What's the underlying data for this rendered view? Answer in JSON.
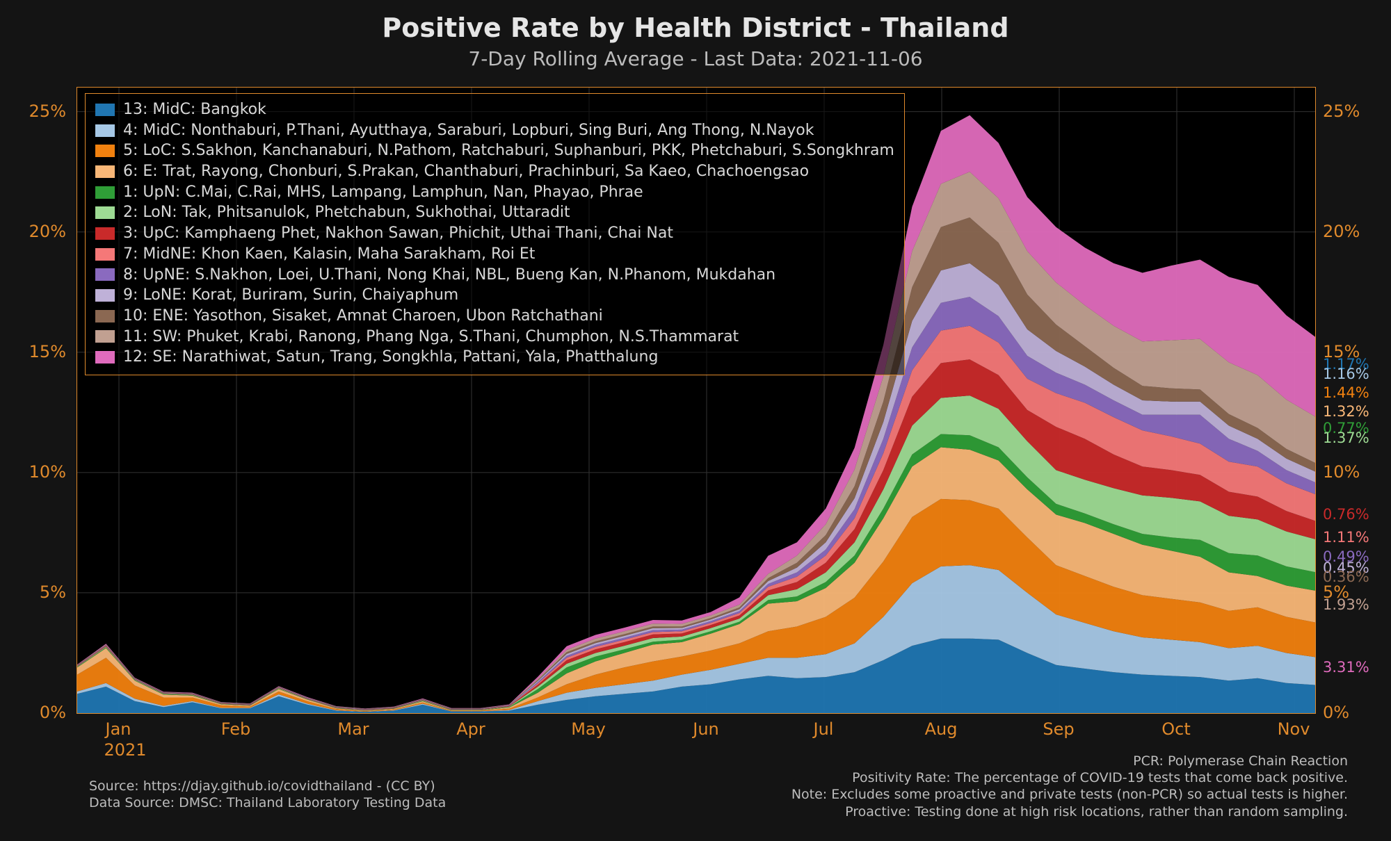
{
  "title": "Positive Rate by Health District - Thailand",
  "subtitle": "7-Day Rolling Average - Last Data: 2021-11-06",
  "chart": {
    "type": "stacked-area",
    "background": "#000000",
    "border_color": "#e08a2c",
    "grid_color": "#333333",
    "tick_color": "#e08a2c",
    "tick_fontsize": 24,
    "title_fontsize": 38,
    "subtitle_fontsize": 28,
    "ylim": [
      0,
      26
    ],
    "yticks": [
      0,
      5,
      10,
      15,
      20,
      25
    ],
    "ytick_labels": [
      "0%",
      "5%",
      "10%",
      "15%",
      "20%",
      "25%"
    ],
    "x_year_label": "2021",
    "x_months": [
      "Jan",
      "Feb",
      "Mar",
      "Apr",
      "May",
      "Jun",
      "Jul",
      "Aug",
      "Sep",
      "Oct",
      "Nov"
    ]
  },
  "series": [
    {
      "key": "d13",
      "label": "13: MidC: Bangkok",
      "color": "#2076b2",
      "end": "1.17%",
      "v": [
        0.8,
        1.1,
        0.5,
        0.25,
        0.45,
        0.2,
        0.2,
        0.7,
        0.35,
        0.1,
        0.05,
        0.1,
        0.35,
        0.07,
        0.07,
        0.1,
        0.35,
        0.55,
        0.7,
        0.8,
        0.9,
        1.1,
        1.2,
        1.4,
        1.55,
        1.45,
        1.5,
        1.7,
        2.2,
        2.8,
        3.1,
        3.1,
        3.05,
        2.5,
        2.0,
        1.85,
        1.7,
        1.6,
        1.55,
        1.5,
        1.35,
        1.45,
        1.25,
        1.17
      ]
    },
    {
      "key": "d4",
      "label": "4: MidC: Nonthaburi, P.Thani, Ayutthaya, Saraburi, Lopburi, Sing Buri, Ang Thong, N.Nayok",
      "color": "#a6c8e6",
      "end": "1.16%",
      "v": [
        0.1,
        0.15,
        0.1,
        0.05,
        0.05,
        0.02,
        0.02,
        0.08,
        0.04,
        0.02,
        0.01,
        0.02,
        0.04,
        0.01,
        0.01,
        0.03,
        0.15,
        0.3,
        0.35,
        0.4,
        0.45,
        0.5,
        0.6,
        0.65,
        0.75,
        0.85,
        0.95,
        1.2,
        1.8,
        2.6,
        3.0,
        3.05,
        2.9,
        2.5,
        2.1,
        1.9,
        1.7,
        1.55,
        1.5,
        1.45,
        1.35,
        1.35,
        1.25,
        1.16
      ]
    },
    {
      "key": "d5",
      "label": "5: LoC: S.Sakhon, Kanchanaburi, N.Pathom, Ratchaburi, Suphanburi, PKK, Phetchaburi, S.Songkhram",
      "color": "#f1810f",
      "end": "1.44%",
      "v": [
        0.7,
        1.05,
        0.55,
        0.35,
        0.15,
        0.1,
        0.05,
        0.12,
        0.1,
        0.05,
        0.02,
        0.03,
        0.05,
        0.02,
        0.02,
        0.05,
        0.15,
        0.35,
        0.55,
        0.7,
        0.8,
        0.75,
        0.8,
        0.85,
        1.1,
        1.3,
        1.55,
        1.9,
        2.3,
        2.75,
        2.8,
        2.7,
        2.55,
        2.3,
        2.05,
        1.95,
        1.85,
        1.75,
        1.7,
        1.65,
        1.55,
        1.6,
        1.5,
        1.44
      ]
    },
    {
      "key": "d6",
      "label": "6: E: Trat, Rayong, Chonburi, S.Prakan, Chanthaburi, Prachinburi, Sa Kaeo, Chachoengsao",
      "color": "#f9b777",
      "end": "1.32%",
      "v": [
        0.3,
        0.4,
        0.2,
        0.12,
        0.08,
        0.05,
        0.04,
        0.1,
        0.07,
        0.03,
        0.02,
        0.03,
        0.05,
        0.02,
        0.02,
        0.05,
        0.2,
        0.45,
        0.55,
        0.6,
        0.7,
        0.6,
        0.7,
        0.8,
        1.15,
        1.05,
        1.2,
        1.45,
        1.8,
        2.1,
        2.15,
        2.1,
        2.0,
        2.0,
        2.1,
        2.2,
        2.2,
        2.1,
        2.0,
        1.9,
        1.6,
        1.3,
        1.3,
        1.32
      ]
    },
    {
      "key": "d1",
      "label": "1: UpN: C.Mai, C.Rai, MHS, Lampang, Lamphun, Nan, Phayao, Phrae",
      "color": "#2f9e37",
      "end": "0.77%",
      "v": [
        0.02,
        0.03,
        0.02,
        0.02,
        0.02,
        0.01,
        0.01,
        0.02,
        0.01,
        0.01,
        0.01,
        0.01,
        0.02,
        0.01,
        0.01,
        0.02,
        0.15,
        0.25,
        0.2,
        0.15,
        0.12,
        0.1,
        0.1,
        0.1,
        0.15,
        0.2,
        0.25,
        0.3,
        0.4,
        0.5,
        0.55,
        0.6,
        0.55,
        0.5,
        0.45,
        0.4,
        0.4,
        0.45,
        0.55,
        0.7,
        0.8,
        0.85,
        0.8,
        0.77
      ]
    },
    {
      "key": "d2",
      "label": "2: LoN: Tak, Phitsanulok, Phetchabun, Sukhothai, Uttaradit",
      "color": "#9edb94",
      "end": "1.37%",
      "v": [
        0.02,
        0.03,
        0.02,
        0.02,
        0.02,
        0.01,
        0.01,
        0.02,
        0.01,
        0.01,
        0.01,
        0.01,
        0.02,
        0.01,
        0.01,
        0.02,
        0.1,
        0.15,
        0.15,
        0.15,
        0.15,
        0.13,
        0.13,
        0.13,
        0.2,
        0.3,
        0.4,
        0.55,
        0.8,
        1.2,
        1.5,
        1.65,
        1.6,
        1.5,
        1.4,
        1.4,
        1.5,
        1.6,
        1.65,
        1.6,
        1.55,
        1.5,
        1.45,
        1.37
      ]
    },
    {
      "key": "d3",
      "label": "3: UpC: Kamphaeng Phet, Nakhon Sawan, Phichit, Uthai Thani, Chai Nat",
      "color": "#c92a2a",
      "end": "0.76%",
      "v": [
        0.01,
        0.02,
        0.01,
        0.01,
        0.01,
        0.01,
        0.01,
        0.01,
        0.01,
        0.01,
        0.01,
        0.01,
        0.01,
        0.01,
        0.01,
        0.02,
        0.08,
        0.15,
        0.15,
        0.15,
        0.15,
        0.13,
        0.13,
        0.13,
        0.2,
        0.3,
        0.4,
        0.55,
        0.8,
        1.2,
        1.45,
        1.5,
        1.4,
        1.3,
        1.8,
        1.7,
        1.4,
        1.2,
        1.15,
        1.1,
        1.0,
        0.95,
        0.85,
        0.76
      ]
    },
    {
      "key": "d7",
      "label": "7: MidNE: Khon Kaen, Kalasin, Maha Sarakham, Roi Et",
      "color": "#f57878",
      "end": "1.11%",
      "v": [
        0.01,
        0.02,
        0.01,
        0.01,
        0.01,
        0.01,
        0.01,
        0.01,
        0.01,
        0.01,
        0.01,
        0.01,
        0.01,
        0.01,
        0.01,
        0.01,
        0.06,
        0.1,
        0.1,
        0.1,
        0.1,
        0.09,
        0.09,
        0.1,
        0.15,
        0.22,
        0.3,
        0.45,
        0.7,
        1.1,
        1.35,
        1.4,
        1.35,
        1.3,
        1.4,
        1.5,
        1.55,
        1.5,
        1.4,
        1.3,
        1.25,
        1.25,
        1.15,
        1.11
      ]
    },
    {
      "key": "d8",
      "label": "8: UpNE: S.Nakhon, Loei, U.Thani, Nong Khai, NBL, Bueng Kan, N.Phanom, Mukdahan",
      "color": "#8a6abf",
      "end": "0.49%",
      "v": [
        0.01,
        0.01,
        0.01,
        0.01,
        0.01,
        0.01,
        0.01,
        0.01,
        0.01,
        0.01,
        0.01,
        0.01,
        0.01,
        0.01,
        0.01,
        0.01,
        0.05,
        0.08,
        0.08,
        0.08,
        0.08,
        0.07,
        0.07,
        0.08,
        0.12,
        0.18,
        0.25,
        0.38,
        0.6,
        0.95,
        1.15,
        1.2,
        1.1,
        0.95,
        0.85,
        0.75,
        0.7,
        0.65,
        0.9,
        1.2,
        0.95,
        0.65,
        0.55,
        0.49
      ]
    },
    {
      "key": "d9",
      "label": "9: LoNE: Korat, Buriram, Surin, Chaiyaphum",
      "color": "#bfb1d8",
      "end": "0.45%",
      "v": [
        0.01,
        0.01,
        0.01,
        0.01,
        0.01,
        0.01,
        0.01,
        0.01,
        0.01,
        0.01,
        0.01,
        0.01,
        0.01,
        0.01,
        0.01,
        0.01,
        0.05,
        0.08,
        0.08,
        0.08,
        0.08,
        0.07,
        0.07,
        0.08,
        0.12,
        0.2,
        0.3,
        0.45,
        0.7,
        1.1,
        1.35,
        1.4,
        1.3,
        1.1,
        0.9,
        0.75,
        0.65,
        0.6,
        0.55,
        0.55,
        0.55,
        0.5,
        0.48,
        0.45
      ]
    },
    {
      "key": "d10",
      "label": "10: ENE: Yasothon, Sisaket, Amnat Charoen, Ubon Ratchathani",
      "color": "#8b6852",
      "end": "0.36%",
      "v": [
        0.01,
        0.01,
        0.01,
        0.01,
        0.01,
        0.01,
        0.01,
        0.01,
        0.01,
        0.01,
        0.01,
        0.01,
        0.01,
        0.01,
        0.01,
        0.01,
        0.04,
        0.07,
        0.07,
        0.07,
        0.07,
        0.06,
        0.06,
        0.07,
        0.12,
        0.2,
        0.3,
        0.5,
        0.85,
        1.4,
        1.8,
        1.9,
        1.75,
        1.45,
        1.1,
        0.85,
        0.7,
        0.6,
        0.55,
        0.5,
        0.48,
        0.45,
        0.4,
        0.36
      ]
    },
    {
      "key": "d11",
      "label": "11: SW: Phuket, Krabi, Ranong, Phang Nga, S.Thani, Chumphon, N.S.Thammarat",
      "color": "#c1a091",
      "end": "1.93%",
      "v": [
        0.01,
        0.02,
        0.01,
        0.01,
        0.01,
        0.01,
        0.01,
        0.01,
        0.01,
        0.01,
        0.01,
        0.01,
        0.01,
        0.01,
        0.01,
        0.01,
        0.05,
        0.1,
        0.12,
        0.12,
        0.12,
        0.11,
        0.11,
        0.12,
        0.18,
        0.3,
        0.45,
        0.7,
        1.05,
        1.5,
        1.8,
        1.9,
        1.85,
        1.8,
        1.75,
        1.7,
        1.75,
        1.85,
        2.0,
        2.1,
        2.15,
        2.2,
        2.05,
        1.93
      ]
    },
    {
      "key": "d12",
      "label": "12: SE: Narathiwat, Satun, Trang, Songkhla, Pattani, Yala, Phatthalung",
      "color": "#e06bbd",
      "end": "3.31%",
      "v": [
        0.02,
        0.03,
        0.02,
        0.02,
        0.02,
        0.01,
        0.01,
        0.02,
        0.02,
        0.01,
        0.01,
        0.01,
        0.02,
        0.01,
        0.01,
        0.02,
        0.08,
        0.15,
        0.15,
        0.15,
        0.15,
        0.14,
        0.14,
        0.3,
        0.75,
        0.55,
        0.65,
        0.9,
        1.3,
        1.85,
        2.2,
        2.35,
        2.3,
        2.25,
        2.3,
        2.4,
        2.6,
        2.85,
        3.1,
        3.3,
        3.55,
        3.75,
        3.5,
        3.31
      ]
    }
  ],
  "end_labels": [
    {
      "text": "1.17%",
      "color": "#2076b2",
      "y": 14.49
    },
    {
      "text": "1.16%",
      "color": "#a6c8e6",
      "y": 14.11
    },
    {
      "text": "1.44%",
      "color": "#f1810f",
      "y": 13.32
    },
    {
      "text": "1.32%",
      "color": "#f9b777",
      "y": 12.53
    },
    {
      "text": "0.77%",
      "color": "#2f9e37",
      "y": 11.85
    },
    {
      "text": "1.37%",
      "color": "#9edb94",
      "y": 11.45
    },
    {
      "text": "0.76%",
      "color": "#c92a2a",
      "y": 8.25
    },
    {
      "text": "1.11%",
      "color": "#f57878",
      "y": 7.3
    },
    {
      "text": "0.49%",
      "color": "#8a6abf",
      "y": 6.5
    },
    {
      "text": "0.45%",
      "color": "#bfb1d8",
      "y": 6.05
    },
    {
      "text": "0.36%",
      "color": "#8b6852",
      "y": 5.65
    },
    {
      "text": "1.93%",
      "color": "#c1a091",
      "y": 4.51
    },
    {
      "text": "3.31%",
      "color": "#e06bbd",
      "y": 1.9
    }
  ],
  "footer_left": "Source: https://djay.github.io/covidthailand - (CC BY)\nData Source: DMSC: Thailand Laboratory Testing Data",
  "footer_right": "PCR: Polymerase Chain Reaction\nPositivity Rate: The percentage of COVID-19 tests that come back positive.\nNote: Excludes some proactive and private tests (non-PCR) so actual tests is higher.\nProactive: Testing done at high risk locations, rather than random sampling."
}
